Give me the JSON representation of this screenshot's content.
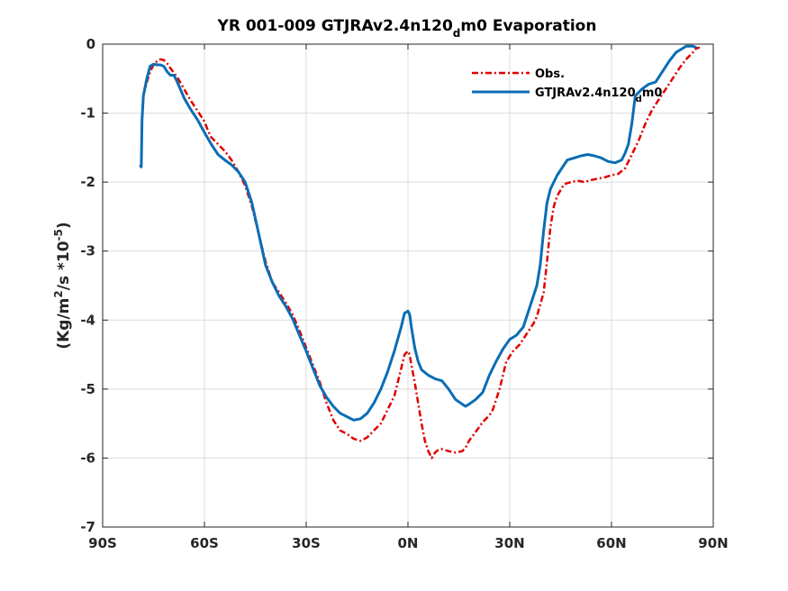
{
  "chart_data": {
    "type": "line",
    "title": "YR 001-009 GTJRAv2.4n120",
    "title_subscript": "d",
    "title_suffix": "m0 Evaporation",
    "ylabel": "(Kg/m",
    "ylabel_sup1": "2",
    "ylabel_mid": "/s *10",
    "ylabel_sup2": "-5",
    "ylabel_end": ")",
    "xlim": [
      -90,
      90
    ],
    "ylim": [
      -7,
      0
    ],
    "grid": true,
    "legend_position": "top-right",
    "x_ticks": [
      {
        "value": -90,
        "label": "90S"
      },
      {
        "value": -60,
        "label": "60S"
      },
      {
        "value": -30,
        "label": "30S"
      },
      {
        "value": 0,
        "label": "0N"
      },
      {
        "value": 30,
        "label": "30N"
      },
      {
        "value": 60,
        "label": "60N"
      },
      {
        "value": 90,
        "label": "90N"
      }
    ],
    "y_ticks": [
      {
        "value": 0,
        "label": "0"
      },
      {
        "value": -1,
        "label": "-1"
      },
      {
        "value": -2,
        "label": "-2"
      },
      {
        "value": -3,
        "label": "-3"
      },
      {
        "value": -4,
        "label": "-4"
      },
      {
        "value": -5,
        "label": "-5"
      },
      {
        "value": -6,
        "label": "-6"
      },
      {
        "value": -7,
        "label": "-7"
      }
    ],
    "series": [
      {
        "name": "Obs.",
        "color": "#e00000",
        "style": "dash-dot",
        "points": [
          [
            -78,
            -0.75
          ],
          [
            -77,
            -0.55
          ],
          [
            -76,
            -0.4
          ],
          [
            -75,
            -0.3
          ],
          [
            -74,
            -0.25
          ],
          [
            -73,
            -0.22
          ],
          [
            -72,
            -0.23
          ],
          [
            -71,
            -0.28
          ],
          [
            -70,
            -0.35
          ],
          [
            -68,
            -0.48
          ],
          [
            -66,
            -0.65
          ],
          [
            -64,
            -0.82
          ],
          [
            -62,
            -0.97
          ],
          [
            -60,
            -1.12
          ],
          [
            -59,
            -1.25
          ],
          [
            -58,
            -1.35
          ],
          [
            -56,
            -1.45
          ],
          [
            -54,
            -1.55
          ],
          [
            -52,
            -1.68
          ],
          [
            -50,
            -1.85
          ],
          [
            -48,
            -2.05
          ],
          [
            -46,
            -2.35
          ],
          [
            -44,
            -2.75
          ],
          [
            -42,
            -3.15
          ],
          [
            -40,
            -3.45
          ],
          [
            -38,
            -3.6
          ],
          [
            -36,
            -3.75
          ],
          [
            -34,
            -3.92
          ],
          [
            -32,
            -4.15
          ],
          [
            -30,
            -4.4
          ],
          [
            -28,
            -4.65
          ],
          [
            -26,
            -4.9
          ],
          [
            -24,
            -5.2
          ],
          [
            -22,
            -5.45
          ],
          [
            -20,
            -5.6
          ],
          [
            -18,
            -5.65
          ],
          [
            -16,
            -5.72
          ],
          [
            -14,
            -5.75
          ],
          [
            -12,
            -5.7
          ],
          [
            -10,
            -5.6
          ],
          [
            -8,
            -5.5
          ],
          [
            -6,
            -5.3
          ],
          [
            -4,
            -5.1
          ],
          [
            -2,
            -4.7
          ],
          [
            -1,
            -4.5
          ],
          [
            0,
            -4.45
          ],
          [
            0.5,
            -4.5
          ],
          [
            1,
            -4.65
          ],
          [
            2,
            -4.9
          ],
          [
            3,
            -5.2
          ],
          [
            4,
            -5.5
          ],
          [
            5,
            -5.75
          ],
          [
            6,
            -5.9
          ],
          [
            7,
            -6.0
          ],
          [
            8,
            -5.92
          ],
          [
            9,
            -5.88
          ],
          [
            10,
            -5.87
          ],
          [
            12,
            -5.9
          ],
          [
            14,
            -5.92
          ],
          [
            16,
            -5.9
          ],
          [
            17,
            -5.85
          ],
          [
            18,
            -5.75
          ],
          [
            20,
            -5.62
          ],
          [
            22,
            -5.48
          ],
          [
            24,
            -5.38
          ],
          [
            25,
            -5.3
          ],
          [
            27,
            -5.0
          ],
          [
            29,
            -4.6
          ],
          [
            31,
            -4.45
          ],
          [
            33,
            -4.35
          ],
          [
            35,
            -4.2
          ],
          [
            37,
            -4.05
          ],
          [
            38,
            -3.95
          ],
          [
            40,
            -3.6
          ],
          [
            41,
            -3.15
          ],
          [
            42,
            -2.65
          ],
          [
            43,
            -2.35
          ],
          [
            44,
            -2.2
          ],
          [
            46,
            -2.03
          ],
          [
            48,
            -2.0
          ],
          [
            50,
            -1.98
          ],
          [
            52,
            -2.0
          ],
          [
            54,
            -1.97
          ],
          [
            56,
            -1.95
          ],
          [
            58,
            -1.93
          ],
          [
            60,
            -1.9
          ],
          [
            62,
            -1.88
          ],
          [
            64,
            -1.8
          ],
          [
            66,
            -1.6
          ],
          [
            68,
            -1.4
          ],
          [
            70,
            -1.15
          ],
          [
            72,
            -0.95
          ],
          [
            74,
            -0.8
          ],
          [
            76,
            -0.65
          ],
          [
            78,
            -0.5
          ],
          [
            80,
            -0.35
          ],
          [
            82,
            -0.22
          ],
          [
            84,
            -0.12
          ],
          [
            85,
            -0.06
          ],
          [
            86,
            -0.05
          ]
        ]
      },
      {
        "name": "GTJRAv2.4n120",
        "name_subscript": "d",
        "name_suffix": "m0",
        "color": "#0a6db5",
        "style": "solid",
        "points": [
          [
            -79,
            -1.75
          ],
          [
            -78.6,
            -1.78
          ],
          [
            -78.4,
            -1.1
          ],
          [
            -78,
            -0.75
          ],
          [
            -77,
            -0.5
          ],
          [
            -76,
            -0.32
          ],
          [
            -75,
            -0.29
          ],
          [
            -74,
            -0.3
          ],
          [
            -73,
            -0.3
          ],
          [
            -72,
            -0.32
          ],
          [
            -71,
            -0.4
          ],
          [
            -70,
            -0.45
          ],
          [
            -69,
            -0.45
          ],
          [
            -68,
            -0.55
          ],
          [
            -66,
            -0.78
          ],
          [
            -64,
            -0.95
          ],
          [
            -62,
            -1.1
          ],
          [
            -60,
            -1.28
          ],
          [
            -58,
            -1.45
          ],
          [
            -56,
            -1.6
          ],
          [
            -54,
            -1.68
          ],
          [
            -52,
            -1.75
          ],
          [
            -50,
            -1.85
          ],
          [
            -48,
            -2.0
          ],
          [
            -46,
            -2.3
          ],
          [
            -44,
            -2.75
          ],
          [
            -42,
            -3.2
          ],
          [
            -40,
            -3.45
          ],
          [
            -38,
            -3.65
          ],
          [
            -36,
            -3.8
          ],
          [
            -34,
            -3.98
          ],
          [
            -32,
            -4.22
          ],
          [
            -30,
            -4.45
          ],
          [
            -28,
            -4.7
          ],
          [
            -26,
            -4.95
          ],
          [
            -24,
            -5.12
          ],
          [
            -22,
            -5.25
          ],
          [
            -20,
            -5.35
          ],
          [
            -18,
            -5.4
          ],
          [
            -16,
            -5.45
          ],
          [
            -14,
            -5.43
          ],
          [
            -12,
            -5.35
          ],
          [
            -10,
            -5.2
          ],
          [
            -8,
            -5.0
          ],
          [
            -6,
            -4.75
          ],
          [
            -4,
            -4.45
          ],
          [
            -2,
            -4.1
          ],
          [
            -1,
            -3.9
          ],
          [
            0,
            -3.87
          ],
          [
            0.5,
            -3.92
          ],
          [
            1,
            -4.1
          ],
          [
            2,
            -4.4
          ],
          [
            3,
            -4.6
          ],
          [
            4,
            -4.72
          ],
          [
            6,
            -4.8
          ],
          [
            8,
            -4.85
          ],
          [
            10,
            -4.88
          ],
          [
            12,
            -5.0
          ],
          [
            14,
            -5.15
          ],
          [
            16,
            -5.22
          ],
          [
            17,
            -5.25
          ],
          [
            18,
            -5.22
          ],
          [
            20,
            -5.15
          ],
          [
            22,
            -5.05
          ],
          [
            24,
            -4.8
          ],
          [
            26,
            -4.6
          ],
          [
            28,
            -4.42
          ],
          [
            30,
            -4.28
          ],
          [
            32,
            -4.22
          ],
          [
            34,
            -4.1
          ],
          [
            36,
            -3.8
          ],
          [
            38,
            -3.5
          ],
          [
            39,
            -3.2
          ],
          [
            40,
            -2.7
          ],
          [
            41,
            -2.3
          ],
          [
            42,
            -2.1
          ],
          [
            44,
            -1.9
          ],
          [
            46,
            -1.75
          ],
          [
            47,
            -1.68
          ],
          [
            49,
            -1.65
          ],
          [
            51,
            -1.62
          ],
          [
            53,
            -1.6
          ],
          [
            55,
            -1.62
          ],
          [
            57,
            -1.65
          ],
          [
            59,
            -1.7
          ],
          [
            61,
            -1.72
          ],
          [
            63,
            -1.68
          ],
          [
            64,
            -1.58
          ],
          [
            65,
            -1.45
          ],
          [
            66,
            -1.15
          ],
          [
            67,
            -0.75
          ],
          [
            69,
            -0.65
          ],
          [
            71,
            -0.58
          ],
          [
            73,
            -0.55
          ],
          [
            75,
            -0.4
          ],
          [
            77,
            -0.25
          ],
          [
            79,
            -0.12
          ],
          [
            81,
            -0.06
          ],
          [
            82,
            -0.03
          ],
          [
            84,
            -0.03
          ],
          [
            85,
            -0.05
          ]
        ]
      }
    ]
  }
}
